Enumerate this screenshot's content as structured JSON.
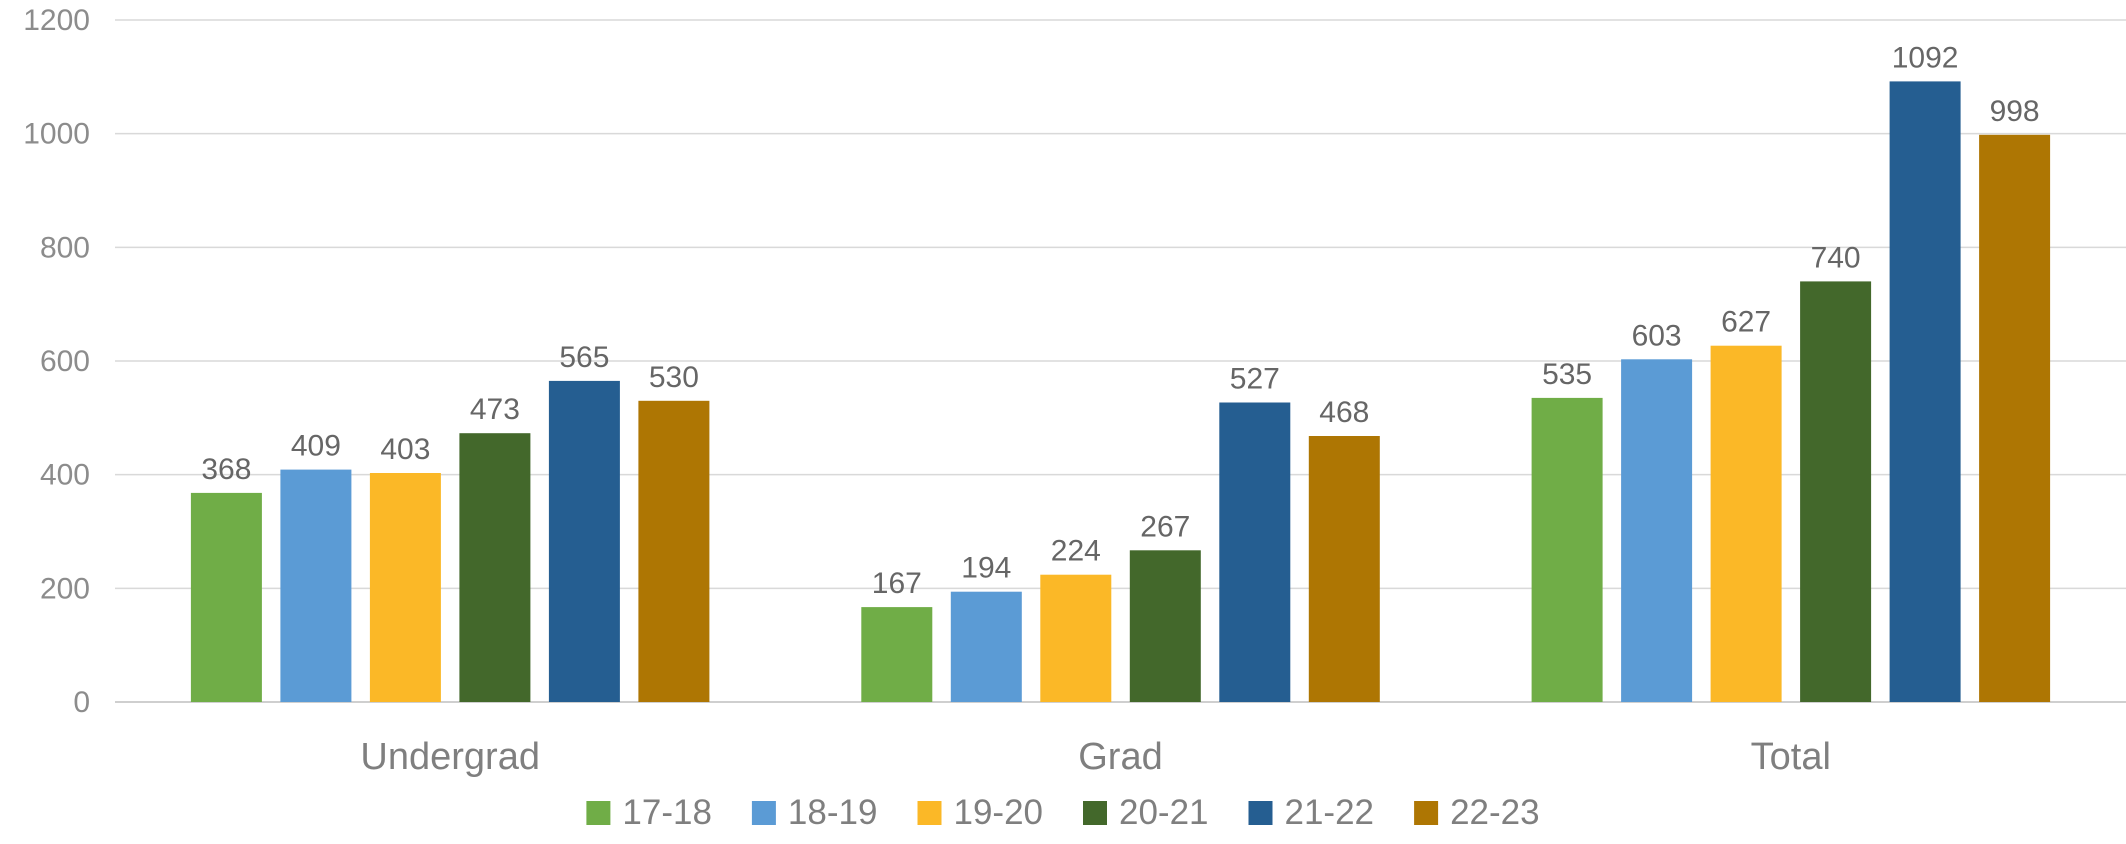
{
  "chart_data": {
    "type": "bar",
    "title": "",
    "xlabel": "",
    "ylabel": "",
    "categories": [
      "Undergrad",
      "Grad",
      "Total"
    ],
    "series": [
      {
        "name": "17-18",
        "color": "#70ad47",
        "values": [
          368,
          167,
          535
        ]
      },
      {
        "name": "18-19",
        "color": "#5b9bd5",
        "values": [
          409,
          194,
          603
        ]
      },
      {
        "name": "19-20",
        "color": "#fbb827",
        "values": [
          403,
          224,
          627
        ]
      },
      {
        "name": "20-21",
        "color": "#43682b",
        "values": [
          473,
          267,
          740
        ]
      },
      {
        "name": "21-22",
        "color": "#255e91",
        "values": [
          565,
          527,
          1092
        ]
      },
      {
        "name": "22-23",
        "color": "#ae7603",
        "values": [
          530,
          468,
          998
        ]
      }
    ],
    "ylim": [
      0,
      1200
    ],
    "yticks": [
      0,
      200,
      400,
      600,
      800,
      1000,
      1200
    ],
    "grid": true,
    "legend_position": "bottom",
    "data_labels": true
  }
}
